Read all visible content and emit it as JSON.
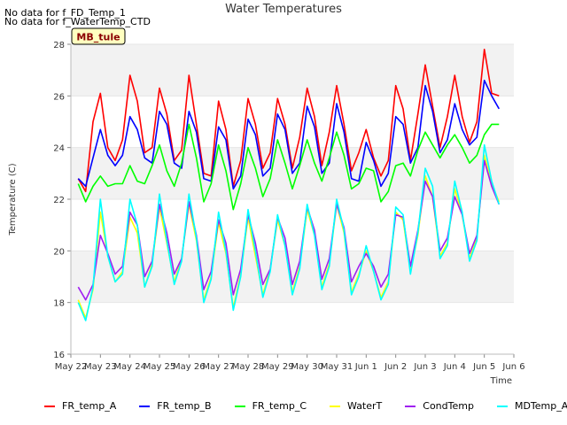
{
  "notes": [
    "No data for f_FD_Temp_1",
    "No data for f_WaterTemp_CTD"
  ],
  "badge": "MB_tule",
  "chart_data": {
    "type": "line",
    "title": "Water Temperatures",
    "xlabel": "Time",
    "ylabel": "Temperature (C)",
    "ylim": [
      16,
      28
    ],
    "xlim": [
      "2023-05-22",
      "2023-06-06"
    ],
    "yticks": [
      16,
      18,
      20,
      22,
      24,
      26,
      28
    ],
    "x_tick_labels": [
      "May 22",
      "May 23",
      "May 24",
      "May 25",
      "May 26",
      "May 27",
      "May 28",
      "May 29",
      "May 30",
      "May 31",
      "Jun 1",
      "Jun 2",
      "Jun 3",
      "Jun 4",
      "Jun 5",
      "Jun 6"
    ],
    "x": [
      "2023-05-22 06:00",
      "2023-05-22 12:00",
      "2023-05-22 18:00",
      "2023-05-23 00:00",
      "2023-05-23 06:00",
      "2023-05-23 12:00",
      "2023-05-23 18:00",
      "2023-05-24 00:00",
      "2023-05-24 06:00",
      "2023-05-24 12:00",
      "2023-05-24 18:00",
      "2023-05-25 00:00",
      "2023-05-25 06:00",
      "2023-05-25 12:00",
      "2023-05-25 18:00",
      "2023-05-26 00:00",
      "2023-05-26 06:00",
      "2023-05-26 12:00",
      "2023-05-26 18:00",
      "2023-05-27 00:00",
      "2023-05-27 06:00",
      "2023-05-27 12:00",
      "2023-05-27 18:00",
      "2023-05-28 00:00",
      "2023-05-28 06:00",
      "2023-05-28 12:00",
      "2023-05-28 18:00",
      "2023-05-29 00:00",
      "2023-05-29 06:00",
      "2023-05-29 12:00",
      "2023-05-29 18:00",
      "2023-05-30 00:00",
      "2023-05-30 06:00",
      "2023-05-30 12:00",
      "2023-05-30 18:00",
      "2023-05-31 00:00",
      "2023-05-31 06:00",
      "2023-05-31 12:00",
      "2023-05-31 18:00",
      "2023-06-01 00:00",
      "2023-06-01 06:00",
      "2023-06-01 12:00",
      "2023-06-01 18:00",
      "2023-06-02 00:00",
      "2023-06-02 06:00",
      "2023-06-02 12:00",
      "2023-06-02 18:00",
      "2023-06-03 00:00",
      "2023-06-03 06:00",
      "2023-06-03 12:00",
      "2023-06-03 18:00",
      "2023-06-04 00:00",
      "2023-06-04 06:00",
      "2023-06-04 12:00",
      "2023-06-04 18:00",
      "2023-06-05 00:00",
      "2023-06-05 06:00",
      "2023-06-05 12:00"
    ],
    "series": [
      {
        "name": "FR_temp_A",
        "color": "#ff0000",
        "values": [
          22.8,
          22.3,
          25.0,
          26.1,
          24.0,
          23.5,
          24.3,
          26.8,
          25.8,
          23.8,
          24.0,
          26.3,
          25.3,
          23.5,
          23.9,
          26.8,
          24.9,
          23.0,
          22.9,
          25.8,
          24.7,
          22.5,
          23.5,
          25.9,
          24.9,
          23.2,
          23.8,
          25.9,
          24.9,
          23.2,
          24.4,
          26.3,
          25.2,
          23.3,
          24.6,
          26.4,
          24.9,
          23.1,
          23.8,
          24.7,
          23.6,
          22.9,
          23.5,
          26.4,
          25.5,
          23.5,
          25.3,
          27.2,
          25.6,
          24.0,
          25.2,
          26.8,
          25.2,
          24.2,
          25.0,
          27.8,
          26.1,
          26.0
        ]
      },
      {
        "name": "FR_temp_B",
        "color": "#0000ff",
        "values": [
          22.8,
          22.5,
          23.6,
          24.7,
          23.7,
          23.3,
          23.7,
          25.2,
          24.7,
          23.6,
          23.4,
          25.4,
          24.9,
          23.4,
          23.2,
          25.4,
          24.6,
          22.8,
          22.7,
          24.8,
          24.3,
          22.4,
          22.9,
          25.1,
          24.5,
          22.9,
          23.2,
          25.3,
          24.7,
          23.0,
          23.4,
          25.6,
          24.8,
          23.0,
          23.4,
          25.7,
          24.6,
          22.8,
          22.7,
          24.2,
          23.5,
          22.5,
          23.0,
          25.2,
          24.9,
          23.4,
          24.0,
          26.4,
          25.4,
          23.8,
          24.3,
          25.7,
          24.7,
          24.1,
          24.4,
          26.6,
          26.0,
          25.5
        ]
      },
      {
        "name": "FR_temp_C",
        "color": "#00ff00",
        "values": [
          22.6,
          21.9,
          22.5,
          22.9,
          22.5,
          22.6,
          22.6,
          23.3,
          22.7,
          22.6,
          23.3,
          24.1,
          23.1,
          22.5,
          23.4,
          24.9,
          23.6,
          21.9,
          22.6,
          24.1,
          23.1,
          21.6,
          22.6,
          24.0,
          23.2,
          22.1,
          22.8,
          24.3,
          23.4,
          22.4,
          23.3,
          24.3,
          23.4,
          22.7,
          23.6,
          24.6,
          23.7,
          22.4,
          22.6,
          23.2,
          23.1,
          21.9,
          22.3,
          23.3,
          23.4,
          22.9,
          23.9,
          24.6,
          24.1,
          23.6,
          24.1,
          24.5,
          24.0,
          23.4,
          23.7,
          24.5,
          24.9,
          24.9
        ]
      },
      {
        "name": "WaterT",
        "color": "#ffff00",
        "values": [
          18.1,
          17.4,
          18.5,
          21.5,
          19.8,
          18.8,
          19.2,
          21.3,
          20.7,
          18.6,
          19.5,
          21.7,
          20.3,
          18.8,
          19.7,
          21.8,
          20.4,
          18.1,
          19.0,
          21.1,
          19.9,
          17.8,
          19.1,
          21.3,
          19.8,
          18.3,
          19.3,
          21.2,
          20.2,
          18.4,
          19.4,
          21.6,
          20.6,
          18.6,
          19.5,
          21.8,
          20.7,
          18.4,
          19.1,
          20.0,
          19.2,
          18.2,
          18.8,
          21.5,
          21.2,
          19.2,
          20.6,
          22.9,
          22.1,
          19.8,
          20.3,
          22.4,
          21.4,
          19.7,
          20.5,
          23.7,
          22.6,
          21.9
        ]
      },
      {
        "name": "CondTemp",
        "color": "#a020f0",
        "values": [
          18.6,
          18.1,
          18.7,
          20.6,
          19.9,
          19.1,
          19.4,
          21.5,
          21.0,
          19.0,
          19.6,
          21.8,
          20.7,
          19.1,
          19.7,
          21.9,
          20.6,
          18.5,
          19.2,
          21.2,
          20.3,
          18.3,
          19.3,
          21.4,
          20.3,
          18.7,
          19.3,
          21.3,
          20.5,
          18.7,
          19.6,
          21.7,
          20.8,
          18.9,
          19.7,
          21.8,
          20.9,
          18.8,
          19.4,
          19.9,
          19.4,
          18.6,
          19.1,
          21.4,
          21.3,
          19.4,
          20.8,
          22.7,
          22.1,
          20.0,
          20.5,
          22.1,
          21.4,
          19.9,
          20.6,
          23.5,
          22.5,
          21.8
        ]
      },
      {
        "name": "MDTemp_A",
        "color": "#00ffff",
        "values": [
          18.0,
          17.3,
          18.6,
          22.0,
          19.8,
          18.8,
          19.1,
          22.0,
          21.0,
          18.6,
          19.4,
          22.2,
          20.4,
          18.7,
          19.6,
          22.2,
          20.5,
          18.0,
          18.9,
          21.5,
          20.0,
          17.7,
          19.0,
          21.6,
          20.0,
          18.2,
          19.2,
          21.4,
          20.2,
          18.3,
          19.3,
          21.8,
          20.6,
          18.5,
          19.4,
          22.0,
          20.8,
          18.3,
          19.0,
          20.2,
          19.2,
          18.1,
          18.7,
          21.7,
          21.4,
          19.1,
          20.7,
          23.2,
          22.5,
          19.7,
          20.2,
          22.7,
          21.5,
          19.6,
          20.4,
          24.1,
          22.7,
          21.8
        ]
      }
    ],
    "grid": false,
    "legend": "bottom"
  }
}
